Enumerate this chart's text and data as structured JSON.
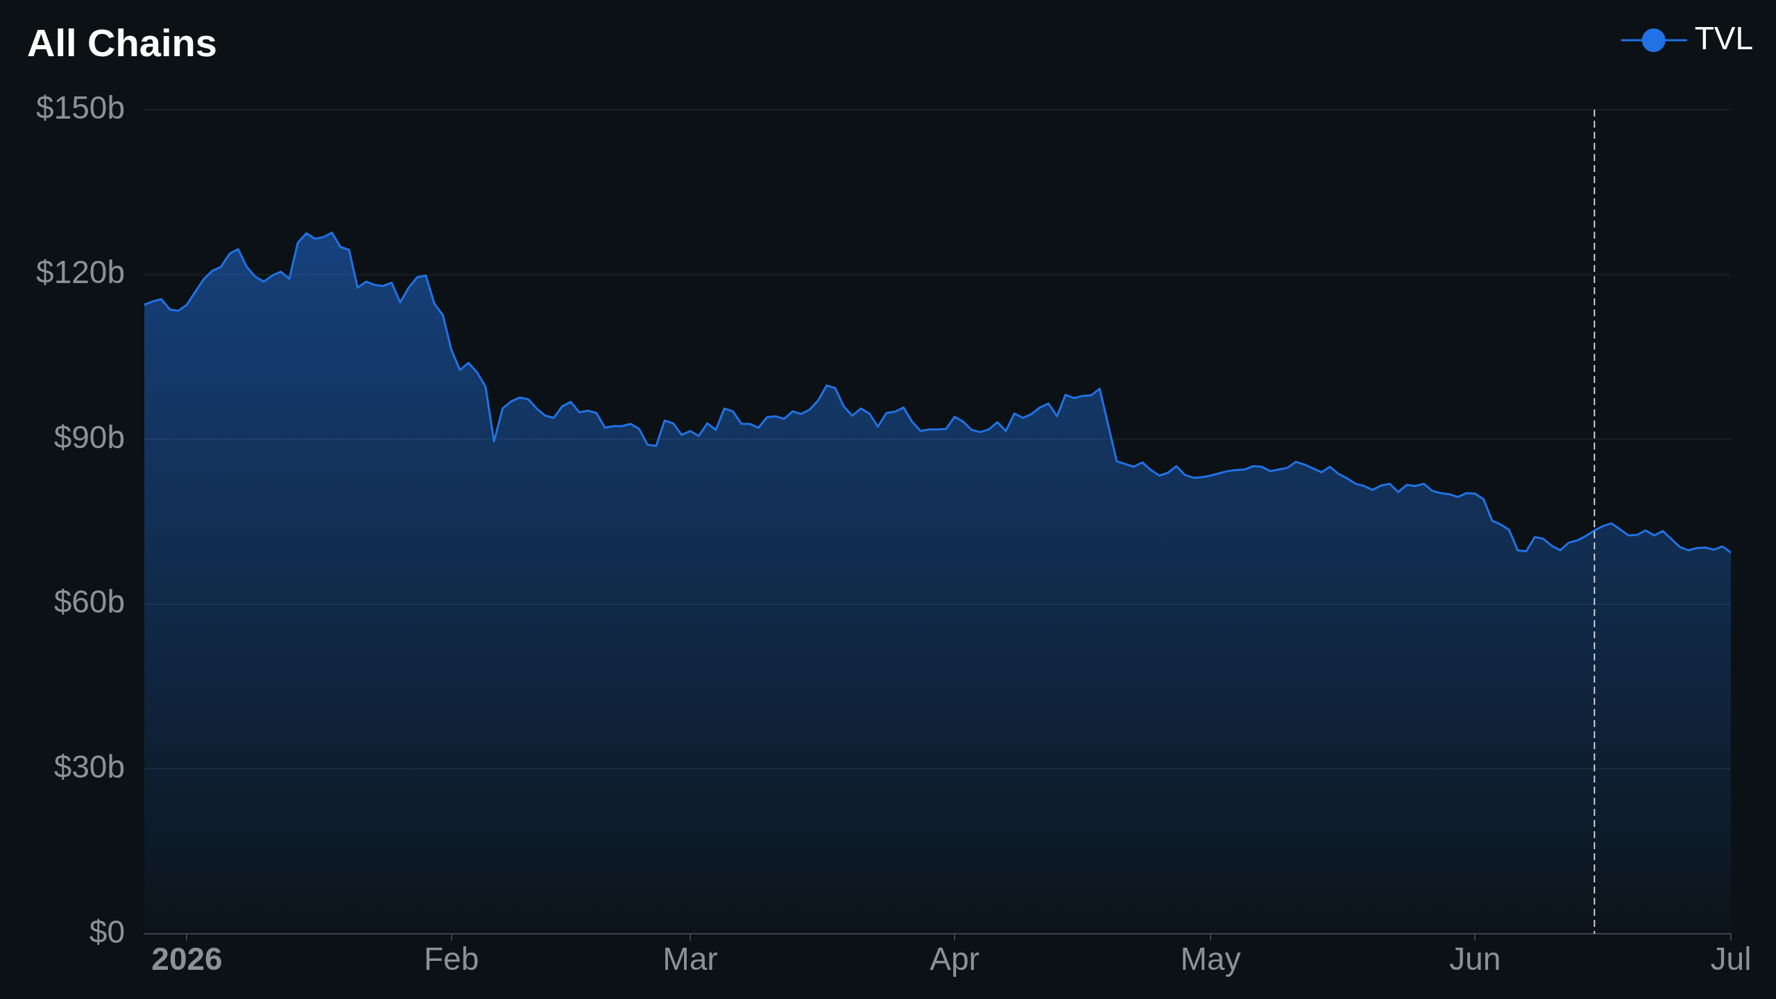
{
  "chart_data": {
    "type": "area",
    "title": "All Chains",
    "x": [
      "2025-12-27",
      "2025-12-28",
      "2025-12-29",
      "2025-12-30",
      "2025-12-31",
      "2026-01-01",
      "2026-01-02",
      "2026-01-03",
      "2026-01-04",
      "2026-01-05",
      "2026-01-06",
      "2026-01-07",
      "2026-01-08",
      "2026-01-09",
      "2026-01-10",
      "2026-01-11",
      "2026-01-12",
      "2026-01-13",
      "2026-01-14",
      "2026-01-15",
      "2026-01-16",
      "2026-01-17",
      "2026-01-18",
      "2026-01-19",
      "2026-01-20",
      "2026-01-21",
      "2026-01-22",
      "2026-01-23",
      "2026-01-24",
      "2026-01-25",
      "2026-01-26",
      "2026-01-27",
      "2026-01-28",
      "2026-01-29",
      "2026-01-30",
      "2026-01-31",
      "2026-02-01",
      "2026-02-02",
      "2026-02-03",
      "2026-02-04",
      "2026-02-05",
      "2026-02-06",
      "2026-02-07",
      "2026-02-08",
      "2026-02-09",
      "2026-02-10",
      "2026-02-11",
      "2026-02-12",
      "2026-02-13",
      "2026-02-14",
      "2026-02-15",
      "2026-02-16",
      "2026-02-17",
      "2026-02-18",
      "2026-02-19",
      "2026-02-20",
      "2026-02-21",
      "2026-02-22",
      "2026-02-23",
      "2026-02-24",
      "2026-02-25",
      "2026-02-26",
      "2026-02-27",
      "2026-02-28",
      "2026-03-01",
      "2026-03-02",
      "2026-03-03",
      "2026-03-04",
      "2026-03-05",
      "2026-03-06",
      "2026-03-07",
      "2026-03-08",
      "2026-03-09",
      "2026-03-10",
      "2026-03-11",
      "2026-03-12",
      "2026-03-13",
      "2026-03-14",
      "2026-03-15",
      "2026-03-16",
      "2026-03-17",
      "2026-03-18",
      "2026-03-19",
      "2026-03-20",
      "2026-03-21",
      "2026-03-22",
      "2026-03-23",
      "2026-03-24",
      "2026-03-25",
      "2026-03-26",
      "2026-03-27",
      "2026-03-28",
      "2026-03-29",
      "2026-03-30",
      "2026-03-31",
      "2026-04-01",
      "2026-04-02",
      "2026-04-03",
      "2026-04-04",
      "2026-04-05",
      "2026-04-06",
      "2026-04-07",
      "2026-04-08",
      "2026-04-09",
      "2026-04-10",
      "2026-04-11",
      "2026-04-12",
      "2026-04-13",
      "2026-04-14",
      "2026-04-15",
      "2026-04-16",
      "2026-04-17",
      "2026-04-18",
      "2026-04-20",
      "2026-04-21",
      "2026-04-22",
      "2026-04-23",
      "2026-04-24",
      "2026-04-25",
      "2026-04-26",
      "2026-04-27",
      "2026-04-28",
      "2026-04-29",
      "2026-04-30",
      "2026-05-01",
      "2026-05-02",
      "2026-05-03",
      "2026-05-04",
      "2026-05-05",
      "2026-05-06",
      "2026-05-07",
      "2026-05-08",
      "2026-05-09",
      "2026-05-10",
      "2026-05-11",
      "2026-05-12",
      "2026-05-13",
      "2026-05-14",
      "2026-05-15",
      "2026-05-16",
      "2026-05-17",
      "2026-05-18",
      "2026-05-19",
      "2026-05-20",
      "2026-05-21",
      "2026-05-22",
      "2026-05-23",
      "2026-05-24",
      "2026-05-25",
      "2026-05-26",
      "2026-05-27",
      "2026-05-28",
      "2026-05-29",
      "2026-05-30",
      "2026-05-31",
      "2026-06-01",
      "2026-06-02",
      "2026-06-03",
      "2026-06-04",
      "2026-06-05",
      "2026-06-06",
      "2026-06-07",
      "2026-06-08",
      "2026-06-09",
      "2026-06-10",
      "2026-06-11",
      "2026-06-12",
      "2026-06-13",
      "2026-06-14",
      "2026-06-15",
      "2026-06-16",
      "2026-06-17",
      "2026-06-18",
      "2026-06-19",
      "2026-06-20",
      "2026-06-21",
      "2026-06-22",
      "2026-06-23",
      "2026-06-24",
      "2026-06-25",
      "2026-06-26",
      "2026-06-27",
      "2026-06-28",
      "2026-06-29",
      "2026-06-30",
      "2026-07-01"
    ],
    "series": [
      {
        "name": "TVL",
        "color": "#2172e5",
        "values": [
          114.5,
          115.1,
          115.5,
          113.6,
          113.4,
          114.5,
          116.9,
          119.2,
          120.7,
          121.4,
          123.8,
          124.6,
          121.4,
          119.6,
          118.7,
          119.8,
          120.5,
          119.2,
          125.8,
          127.5,
          126.5,
          126.8,
          127.6,
          125.0,
          124.5,
          117.6,
          118.7,
          118.1,
          117.9,
          118.5,
          114.9,
          117.6,
          119.5,
          119.8,
          114.7,
          112.6,
          106.3,
          102.6,
          103.9,
          102.2,
          99.6,
          89.6,
          95.6,
          96.9,
          97.6,
          97.3,
          95.6,
          94.3,
          93.9,
          96.0,
          96.8,
          94.9,
          95.2,
          94.8,
          92.1,
          92.4,
          92.4,
          92.8,
          91.9,
          89.0,
          88.8,
          93.4,
          92.9,
          90.8,
          91.5,
          90.6,
          92.9,
          91.7,
          95.6,
          95.1,
          92.8,
          92.8,
          92.1,
          94.0,
          94.2,
          93.7,
          95.1,
          94.6,
          95.4,
          97.1,
          99.8,
          99.3,
          96.0,
          94.3,
          95.6,
          94.7,
          92.3,
          94.8,
          95.0,
          95.8,
          93.2,
          91.5,
          91.8,
          91.8,
          91.9,
          94.1,
          93.2,
          91.7,
          91.3,
          91.8,
          93.1,
          91.5,
          94.7,
          93.9,
          94.6,
          95.8,
          96.5,
          94.2,
          98.1,
          97.5,
          97.9,
          98.0,
          99.2,
          86.0,
          85.5,
          85.0,
          85.8,
          84.4,
          83.4,
          83.9,
          85.1,
          83.5,
          83.0,
          83.1,
          83.4,
          83.8,
          84.2,
          84.4,
          84.5,
          85.1,
          85.0,
          84.2,
          84.5,
          84.8,
          85.9,
          85.4,
          84.7,
          84.0,
          85.0,
          83.7,
          82.9,
          81.9,
          81.5,
          80.8,
          81.6,
          81.9,
          80.4,
          81.7,
          81.5,
          81.9,
          80.6,
          80.2,
          80.0,
          79.5,
          80.2,
          80.1,
          79.1,
          75.2,
          74.5,
          73.5,
          69.8,
          69.6,
          72.2,
          71.9,
          70.6,
          69.8,
          71.2,
          71.6,
          72.4,
          73.4,
          74.2,
          74.7,
          73.6,
          72.5,
          72.6,
          73.4,
          72.5,
          73.3,
          71.9,
          70.4,
          69.8,
          70.2,
          70.3,
          69.9,
          70.5,
          69.4
        ]
      }
    ],
    "xlim": [
      "2025-12-27",
      "2026-07-01"
    ],
    "xticks": [
      {
        "value": "2026-01-01",
        "label": "2026"
      },
      {
        "value": "2026-02-01",
        "label": "Feb"
      },
      {
        "value": "2026-03-01",
        "label": "Mar"
      },
      {
        "value": "2026-04-01",
        "label": "Apr"
      },
      {
        "value": "2026-05-01",
        "label": "May"
      },
      {
        "value": "2026-06-01",
        "label": "Jun"
      },
      {
        "value": "2026-07-01",
        "label": "Jul"
      }
    ],
    "ylim": [
      0,
      150
    ],
    "yticks": [
      {
        "value": 0,
        "label": "$0"
      },
      {
        "value": 30,
        "label": "$30b"
      },
      {
        "value": 60,
        "label": "$60b"
      },
      {
        "value": 90,
        "label": "$90b"
      },
      {
        "value": 120,
        "label": "$120b"
      },
      {
        "value": 150,
        "label": "$150b"
      }
    ],
    "grid": "y",
    "legend": "top right",
    "marker": "none",
    "ref_lines": [
      {
        "axis": "x",
        "value": "2026-06-15",
        "color": "#cfd3d6",
        "line_style": "dashed"
      }
    ]
  }
}
